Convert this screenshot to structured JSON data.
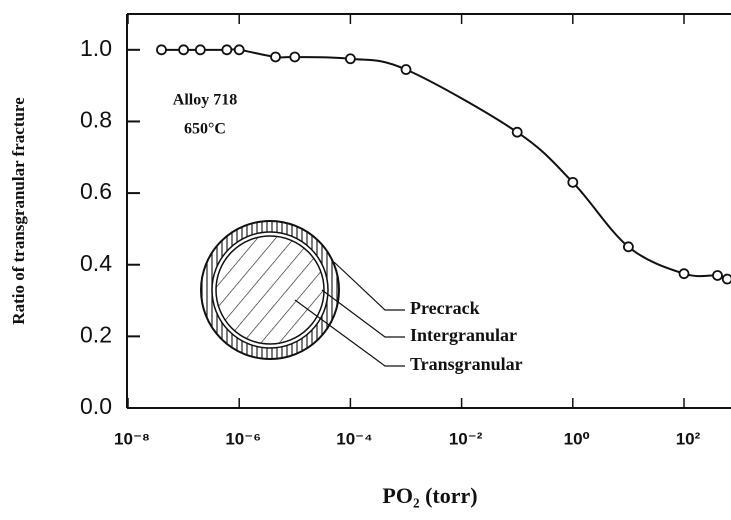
{
  "chart_data": {
    "type": "line",
    "x_label": "PO₂ (torr)",
    "y_label": "Ratio of transgranular fracture",
    "annotations": [
      "Alloy 718",
      "650°C"
    ],
    "inset_labels": [
      "Precrack",
      "Intergranular",
      "Transgranular"
    ],
    "log_x": true,
    "x": [
      4e-08,
      1e-07,
      2e-07,
      6e-07,
      1e-06,
      4.5e-06,
      1e-05,
      0.0001,
      0.001,
      0.1,
      1,
      10,
      100,
      400,
      600
    ],
    "series": [
      {
        "color": "#111111",
        "values": [
          1.0,
          1.0,
          1.0,
          1.0,
          1.0,
          0.98,
          0.98,
          0.975,
          0.945,
          0.77,
          0.63,
          0.45,
          0.375,
          0.37,
          0.36
        ]
      }
    ],
    "xlim": [
      1e-08,
      700
    ],
    "xticks": [
      {
        "value": 1e-08,
        "label": "10⁻⁸"
      },
      {
        "value": 1e-06,
        "label": "10⁻⁶"
      },
      {
        "value": 0.0001,
        "label": "10⁻⁴"
      },
      {
        "value": 0.01,
        "label": "10⁻²"
      },
      {
        "value": 1,
        "label": "10⁰"
      },
      {
        "value": 100,
        "label": "10²"
      }
    ],
    "ylim": [
      0,
      1.1
    ],
    "yticks": [
      {
        "value": 0,
        "label": "0.0"
      },
      0.2,
      0.4,
      0.6,
      0.8,
      {
        "value": 1,
        "label": "1.0"
      }
    ]
  }
}
